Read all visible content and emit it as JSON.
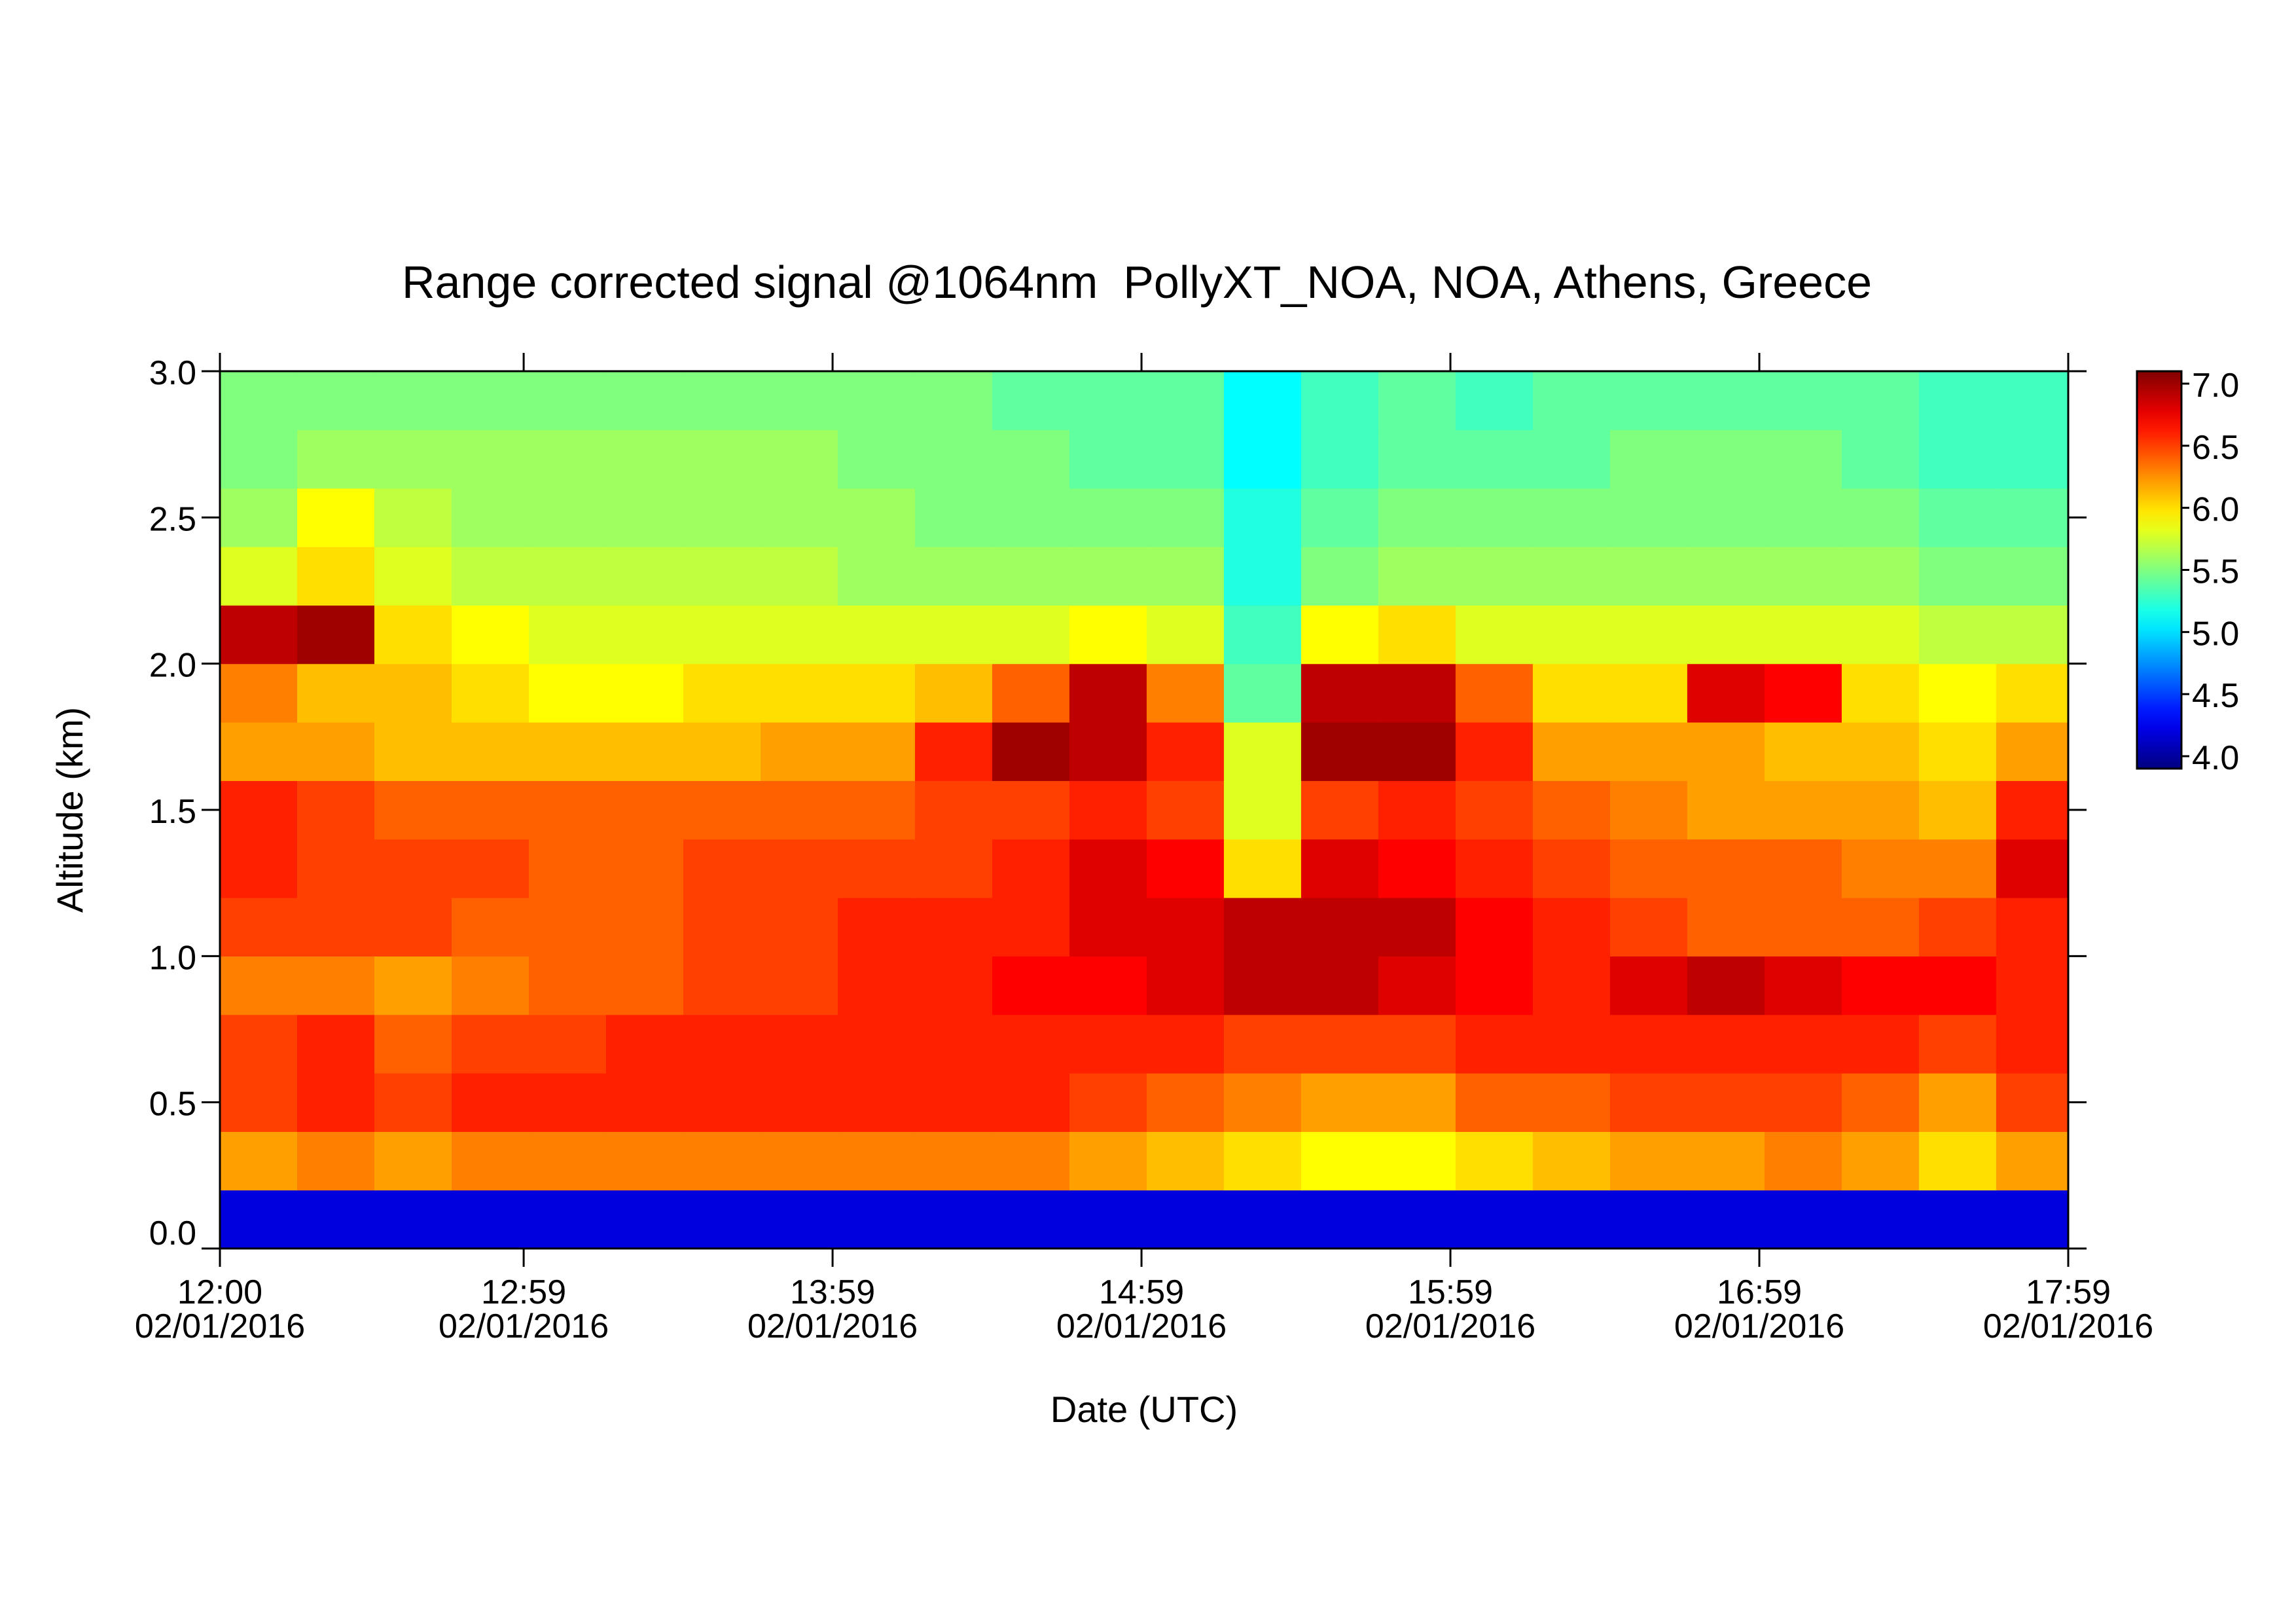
{
  "chart_data": {
    "type": "heatmap",
    "title": "Range corrected signal @1064nm  PollyXT_NOA, NOA, Athens, Greece",
    "xlabel": "Date (UTC)",
    "ylabel": "Altitude (km)",
    "colormap": "jet",
    "xlim": [
      12,
      17.9833
    ],
    "xticks": [
      {
        "value": 12,
        "label": "12:00"
      },
      {
        "value": 12.9833,
        "label": "12:59"
      },
      {
        "value": 13.9833,
        "label": "13:59"
      },
      {
        "value": 14.9833,
        "label": "14:59"
      },
      {
        "value": 15.9833,
        "label": "15:59"
      },
      {
        "value": 16.9833,
        "label": "16:59"
      },
      {
        "value": 17.9833,
        "label": "17:59"
      }
    ],
    "xtick_dates": [
      "02/01/2016",
      "02/01/2016",
      "02/01/2016",
      "02/01/2016",
      "02/01/2016",
      "02/01/2016",
      "02/01/2016"
    ],
    "ylim": [
      0,
      3
    ],
    "yticks": [
      {
        "value": 0,
        "label": "0.0"
      },
      {
        "value": 0.5,
        "label": "0.5"
      },
      {
        "value": 1,
        "label": "1.0"
      },
      {
        "value": 1.5,
        "label": "1.5"
      },
      {
        "value": 2,
        "label": "2.0"
      },
      {
        "value": 2.5,
        "label": "2.5"
      },
      {
        "value": 3,
        "label": "3.0"
      }
    ],
    "zlim": [
      3.9,
      7.1
    ],
    "zticks": [
      {
        "value": 4,
        "label": "4.0"
      },
      {
        "value": 4.5,
        "label": "4.5"
      },
      {
        "value": 5,
        "label": "5.0"
      },
      {
        "value": 5.5,
        "label": "5.5"
      },
      {
        "value": 6,
        "label": "6.0"
      },
      {
        "value": 6.5,
        "label": "6.5"
      },
      {
        "value": 7,
        "label": "7.0"
      }
    ],
    "x": [
      12.125,
      12.375,
      12.625,
      12.875,
      13.125,
      13.375,
      13.625,
      13.875,
      14.125,
      14.375,
      14.625,
      14.875,
      15.125,
      15.375,
      15.625,
      15.875,
      16.125,
      16.375,
      16.625,
      16.875,
      17.125,
      17.375,
      17.625,
      17.875
    ],
    "y": [
      0.1,
      0.3,
      0.5,
      0.7,
      0.9,
      1.1,
      1.3,
      1.5,
      1.7,
      1.9,
      2.1,
      2.3,
      2.5,
      2.7,
      2.9
    ],
    "z": [
      [
        4.2,
        4.2,
        4.2,
        4.2,
        4.2,
        4.2,
        4.2,
        4.2,
        4.2,
        4.2,
        4.2,
        4.2,
        4.2,
        4.2,
        4.2,
        4.2,
        4.2,
        4.2,
        4.2,
        4.2,
        4.2,
        4.2,
        4.2,
        4.2
      ],
      [
        6.2,
        6.3,
        6.2,
        6.3,
        6.3,
        6.3,
        6.3,
        6.3,
        6.3,
        6.3,
        6.3,
        6.2,
        6.1,
        6.0,
        5.9,
        5.9,
        6.0,
        6.1,
        6.2,
        6.2,
        6.3,
        6.2,
        6.0,
        6.2
      ],
      [
        6.5,
        6.6,
        6.5,
        6.6,
        6.6,
        6.6,
        6.6,
        6.6,
        6.6,
        6.6,
        6.6,
        6.5,
        6.4,
        6.3,
        6.2,
        6.2,
        6.4,
        6.4,
        6.5,
        6.5,
        6.5,
        6.4,
        6.2,
        6.5
      ],
      [
        6.5,
        6.6,
        6.4,
        6.5,
        6.5,
        6.6,
        6.6,
        6.6,
        6.6,
        6.6,
        6.6,
        6.6,
        6.6,
        6.5,
        6.5,
        6.5,
        6.6,
        6.6,
        6.6,
        6.6,
        6.6,
        6.6,
        6.5,
        6.6
      ],
      [
        6.3,
        6.3,
        6.2,
        6.3,
        6.4,
        6.4,
        6.5,
        6.5,
        6.6,
        6.6,
        6.7,
        6.7,
        6.8,
        6.9,
        6.9,
        6.8,
        6.7,
        6.6,
        6.8,
        6.9,
        6.8,
        6.7,
        6.7,
        6.6
      ],
      [
        6.5,
        6.5,
        6.5,
        6.4,
        6.4,
        6.4,
        6.5,
        6.5,
        6.6,
        6.6,
        6.6,
        6.8,
        6.8,
        6.9,
        6.9,
        6.9,
        6.7,
        6.6,
        6.5,
        6.4,
        6.4,
        6.4,
        6.5,
        6.6
      ],
      [
        6.6,
        6.5,
        6.5,
        6.5,
        6.4,
        6.4,
        6.5,
        6.5,
        6.5,
        6.5,
        6.6,
        6.8,
        6.7,
        6.0,
        6.8,
        6.7,
        6.6,
        6.5,
        6.4,
        6.4,
        6.4,
        6.3,
        6.3,
        6.8
      ],
      [
        6.6,
        6.5,
        6.4,
        6.4,
        6.4,
        6.4,
        6.4,
        6.4,
        6.4,
        6.5,
        6.5,
        6.6,
        6.5,
        5.8,
        6.5,
        6.6,
        6.5,
        6.4,
        6.3,
        6.2,
        6.2,
        6.2,
        6.1,
        6.6
      ],
      [
        6.2,
        6.2,
        6.1,
        6.1,
        6.1,
        6.1,
        6.1,
        6.2,
        6.2,
        6.6,
        7.0,
        6.9,
        6.6,
        5.8,
        7.0,
        7.0,
        6.6,
        6.2,
        6.2,
        6.2,
        6.1,
        6.1,
        6.0,
        6.2
      ],
      [
        6.3,
        6.1,
        6.1,
        6.0,
        5.9,
        5.9,
        6.0,
        6.0,
        6.0,
        6.1,
        6.4,
        6.9,
        6.3,
        5.4,
        6.9,
        6.9,
        6.4,
        6.0,
        6.0,
        6.8,
        6.7,
        6.0,
        5.9,
        6.0
      ],
      [
        6.9,
        7.0,
        6.0,
        5.9,
        5.8,
        5.8,
        5.8,
        5.8,
        5.8,
        5.8,
        5.8,
        5.9,
        5.8,
        5.3,
        5.9,
        6.0,
        5.8,
        5.8,
        5.8,
        5.8,
        5.8,
        5.8,
        5.7,
        5.7
      ],
      [
        5.8,
        6.0,
        5.8,
        5.7,
        5.7,
        5.7,
        5.7,
        5.7,
        5.6,
        5.6,
        5.6,
        5.6,
        5.6,
        5.2,
        5.5,
        5.6,
        5.6,
        5.6,
        5.6,
        5.6,
        5.6,
        5.6,
        5.5,
        5.5
      ],
      [
        5.6,
        5.9,
        5.7,
        5.6,
        5.6,
        5.6,
        5.6,
        5.6,
        5.6,
        5.5,
        5.5,
        5.5,
        5.5,
        5.2,
        5.4,
        5.5,
        5.5,
        5.5,
        5.5,
        5.5,
        5.5,
        5.5,
        5.4,
        5.4
      ],
      [
        5.5,
        5.6,
        5.6,
        5.6,
        5.6,
        5.6,
        5.6,
        5.6,
        5.5,
        5.5,
        5.5,
        5.4,
        5.4,
        5.1,
        5.3,
        5.4,
        5.4,
        5.4,
        5.5,
        5.5,
        5.5,
        5.4,
        5.3,
        5.3
      ],
      [
        5.5,
        5.5,
        5.5,
        5.5,
        5.5,
        5.5,
        5.5,
        5.5,
        5.5,
        5.5,
        5.4,
        5.4,
        5.4,
        5.1,
        5.3,
        5.4,
        5.3,
        5.4,
        5.4,
        5.4,
        5.4,
        5.4,
        5.3,
        5.3
      ]
    ]
  }
}
